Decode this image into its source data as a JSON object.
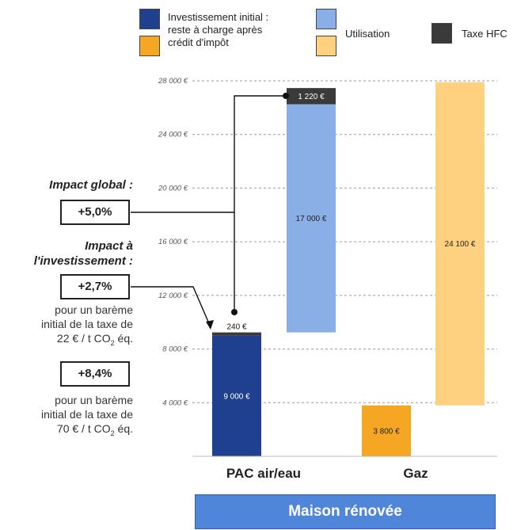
{
  "legend": [
    {
      "label_lines": [
        "Investissement initial :",
        "reste à charge après",
        "crédit d'impôt"
      ],
      "colors": [
        "#1f3f8f",
        "#f5a623"
      ]
    },
    {
      "label_lines": [
        "Utilisation"
      ],
      "colors": [
        "#8aaee6",
        "#fdd17f"
      ]
    },
    {
      "label_lines": [
        "Taxe HFC"
      ],
      "colors": [
        "#3a3a3a"
      ]
    }
  ],
  "annotations": {
    "impact_global_heading": "Impact global :",
    "impact_global_value": "+5,0%",
    "impact_invest_heading_lines": [
      "Impact à",
      "l'investissement :"
    ],
    "impact_invest_value_1": "+2,7%",
    "note_1_lines": [
      "pour un barème",
      "initial de la taxe de",
      "22 € / t CO",
      "2",
      " éq."
    ],
    "impact_invest_value_2": "+8,4%",
    "note_2_lines": [
      "pour un barème",
      "initial de la taxe de",
      "70 € / t CO",
      "2",
      " éq."
    ]
  },
  "group_label": "Maison rénovée",
  "chart_data": {
    "type": "bar",
    "subtype": "stacked-waterfall",
    "categories": [
      "PAC air/eau",
      "Gaz"
    ],
    "ylim": [
      0,
      28000
    ],
    "yticks": [
      4000,
      8000,
      12000,
      16000,
      20000,
      24000,
      28000
    ],
    "ytick_labels": [
      "4 000 €",
      "8 000 €",
      "12 000 €",
      "16 000 €",
      "20 000 €",
      "24 000 €",
      "28 000 €"
    ],
    "grid": "horizontal-dashed",
    "series": [
      {
        "name": "Investissement initial : reste à charge après crédit d'impôt",
        "color_by_category": [
          "#1f3f8f",
          "#f5a623"
        ],
        "segments": [
          {
            "category": "PAC air/eau",
            "value_label": "9 000 €",
            "x_slot": 0,
            "y0": 0,
            "y1": 9000
          },
          {
            "category": "Gaz",
            "value_label": "3 800 €",
            "x_slot": 1,
            "y0": 0,
            "y1": 3800
          }
        ]
      },
      {
        "name": "Taxe HFC",
        "color": "#3a3a3a",
        "segments": [
          {
            "category": "PAC air/eau",
            "value_label": "240 €",
            "x_slot": 0,
            "y0": 9000,
            "y1": 9240
          },
          {
            "category": "PAC air/eau",
            "value_label": "1 220 €",
            "x_slot": 0.5,
            "y0": 26240,
            "y1": 27460
          }
        ]
      },
      {
        "name": "Utilisation",
        "color_by_category": [
          "#8aaee6",
          "#fdd17f"
        ],
        "segments": [
          {
            "category": "PAC air/eau",
            "value_label": "17 000 €",
            "x_slot": 0.5,
            "y0": 9240,
            "y1": 26240
          },
          {
            "category": "Gaz",
            "value_label": "24 100 €",
            "x_slot": 1.5,
            "y0": 3800,
            "y1": 27900
          }
        ]
      }
    ]
  }
}
